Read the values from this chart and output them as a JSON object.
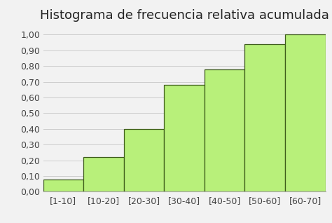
{
  "title": "Histograma de frecuencia relativa acumulada",
  "categories": [
    "[1-10]",
    "[10-20]",
    "[20-30]",
    "[30-40]",
    "[40-50]",
    "[50-60]",
    "[60-70]"
  ],
  "values": [
    0.08,
    0.22,
    0.4,
    0.68,
    0.78,
    0.94,
    1.0
  ],
  "bar_color": "#b8f07a",
  "bar_edge_color": "#3d5c1a",
  "ylim": [
    0,
    1.05
  ],
  "yticks": [
    0.0,
    0.1,
    0.2,
    0.3,
    0.4,
    0.5,
    0.6,
    0.7,
    0.8,
    0.9,
    1.0
  ],
  "ytick_labels": [
    "0,00",
    "0,10",
    "0,20",
    "0,30",
    "0,40",
    "0,50",
    "0,60",
    "0,70",
    "0,80",
    "0,90",
    "1,00"
  ],
  "title_fontsize": 13,
  "tick_fontsize": 9,
  "background_color": "#f2f2f2",
  "grid_color": "#cccccc",
  "figsize": [
    4.74,
    3.18
  ],
  "dpi": 100
}
